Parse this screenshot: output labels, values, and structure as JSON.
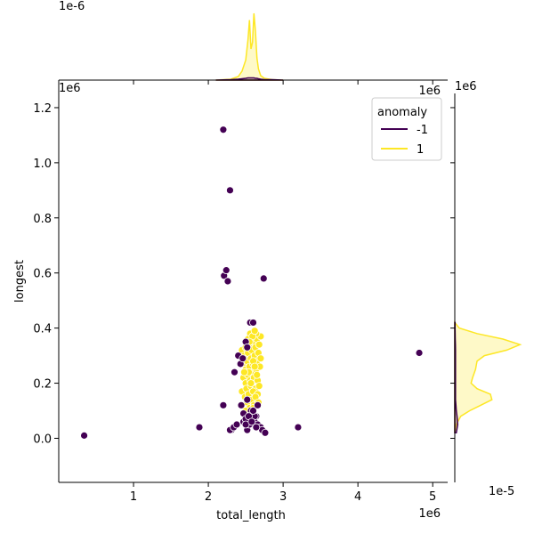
{
  "chart_data": {
    "type": "scatter",
    "kind": "jointplot",
    "xlabel": "total_length",
    "ylabel": "longest",
    "x_offset_label": "1e6",
    "y_offset_label": "1e6",
    "marg_x_offset_label": "1e-6",
    "marg_y_offset_label": "1e-5",
    "xlim": [
      0.0,
      5.2
    ],
    "ylim": [
      -0.16,
      1.3
    ],
    "x_ticks": [
      1,
      2,
      3,
      4,
      5
    ],
    "y_ticks": [
      0.0,
      0.2,
      0.4,
      0.6,
      0.8,
      1.0,
      1.2
    ],
    "x_tick_labels": [
      "1",
      "2",
      "3",
      "4",
      "5"
    ],
    "y_tick_labels": [
      "0.0",
      "0.2",
      "0.4",
      "0.6",
      "0.8",
      "1.0",
      "1.2"
    ],
    "legend": {
      "title": "anomaly",
      "placement": "top-right",
      "entries": [
        {
          "label": "-1",
          "color": "#440154"
        },
        {
          "label": "1",
          "color": "#fde725"
        }
      ]
    },
    "series": [
      {
        "name": "-1",
        "color": "#440154",
        "x": [
          0.34,
          1.88,
          2.2,
          2.21,
          2.24,
          2.26,
          2.29,
          2.31,
          2.35,
          2.4,
          2.43,
          2.46,
          2.5,
          2.52,
          2.56,
          2.6,
          2.64,
          2.68,
          2.74,
          3.2,
          4.82,
          2.2,
          2.44,
          2.47,
          2.52,
          2.55,
          2.58,
          2.62,
          2.66,
          2.7,
          2.29,
          2.34,
          2.38,
          2.72,
          2.76,
          2.57,
          2.62,
          2.47,
          2.5,
          2.54,
          2.6,
          2.66,
          2.5,
          2.58,
          2.64,
          2.52
        ],
        "y": [
          0.01,
          0.04,
          1.12,
          0.59,
          0.61,
          0.57,
          0.9,
          0.03,
          0.24,
          0.3,
          0.27,
          0.29,
          0.35,
          0.33,
          0.42,
          0.42,
          0.08,
          0.04,
          0.58,
          0.04,
          0.31,
          0.12,
          0.12,
          0.06,
          0.03,
          0.05,
          0.07,
          0.06,
          0.05,
          0.04,
          0.03,
          0.04,
          0.05,
          0.03,
          0.02,
          0.1,
          0.08,
          0.09,
          0.07,
          0.08,
          0.1,
          0.12,
          0.05,
          0.06,
          0.04,
          0.14
        ]
      },
      {
        "name": "1",
        "color": "#fde725",
        "x": [
          2.45,
          2.5,
          2.55,
          2.6,
          2.65,
          2.7,
          2.48,
          2.53,
          2.58,
          2.63,
          2.68,
          2.46,
          2.52,
          2.57,
          2.62,
          2.67,
          2.5,
          2.55,
          2.6,
          2.65,
          2.7,
          2.47,
          2.53,
          2.59,
          2.64,
          2.69,
          2.5,
          2.56,
          2.61,
          2.66,
          2.45,
          2.51,
          2.57,
          2.63,
          2.68,
          2.49,
          2.54,
          2.6,
          2.66,
          2.52,
          2.58,
          2.63,
          2.55,
          2.61,
          2.67,
          2.5,
          2.6,
          2.56,
          2.64,
          2.53,
          2.59,
          2.62,
          2.57,
          2.65,
          2.54,
          2.6,
          2.48,
          2.55,
          2.62,
          2.58
        ],
        "y": [
          0.32,
          0.33,
          0.34,
          0.35,
          0.36,
          0.37,
          0.3,
          0.31,
          0.32,
          0.33,
          0.34,
          0.27,
          0.28,
          0.29,
          0.3,
          0.31,
          0.25,
          0.26,
          0.27,
          0.28,
          0.29,
          0.22,
          0.23,
          0.24,
          0.25,
          0.26,
          0.2,
          0.21,
          0.22,
          0.21,
          0.17,
          0.18,
          0.19,
          0.18,
          0.19,
          0.15,
          0.16,
          0.17,
          0.16,
          0.13,
          0.14,
          0.15,
          0.11,
          0.12,
          0.13,
          0.1,
          0.11,
          0.38,
          0.38,
          0.36,
          0.37,
          0.39,
          0.2,
          0.23,
          0.24,
          0.28,
          0.24,
          0.35,
          0.26,
          0.09
        ]
      }
    ],
    "marginal_x": {
      "units": "1e-6",
      "ylim": [
        0,
        1.5
      ],
      "x": [
        2.1,
        2.3,
        2.4,
        2.45,
        2.5,
        2.53,
        2.55,
        2.57,
        2.59,
        2.61,
        2.63,
        2.65,
        2.67,
        2.7,
        2.75,
        2.85,
        3.0
      ],
      "density_1": [
        0,
        0.02,
        0.08,
        0.2,
        0.45,
        0.9,
        1.35,
        0.7,
        0.85,
        1.5,
        1.1,
        0.5,
        0.25,
        0.1,
        0.04,
        0.01,
        0
      ],
      "density_neg1": [
        0,
        0.01,
        0.02,
        0.03,
        0.04,
        0.05,
        0.05,
        0.05,
        0.05,
        0.05,
        0.04,
        0.04,
        0.03,
        0.02,
        0.01,
        0.01,
        0
      ]
    },
    "marginal_y": {
      "units": "1e-5",
      "xlim": [
        0,
        0.9
      ],
      "y": [
        0.02,
        0.05,
        0.08,
        0.1,
        0.12,
        0.14,
        0.16,
        0.18,
        0.2,
        0.22,
        0.25,
        0.28,
        0.3,
        0.32,
        0.34,
        0.36,
        0.38,
        0.4,
        0.42
      ],
      "density_1": [
        0,
        0.02,
        0.08,
        0.2,
        0.35,
        0.5,
        0.48,
        0.3,
        0.22,
        0.24,
        0.28,
        0.3,
        0.4,
        0.7,
        0.88,
        0.65,
        0.3,
        0.06,
        0
      ],
      "density_neg1": [
        0.02,
        0.04,
        0.03,
        0.02,
        0.015,
        0.01,
        0.01,
        0.01,
        0.01,
        0.01,
        0.01,
        0.01,
        0.01,
        0.01,
        0.008,
        0.006,
        0.005,
        0.004,
        0.003
      ]
    }
  }
}
